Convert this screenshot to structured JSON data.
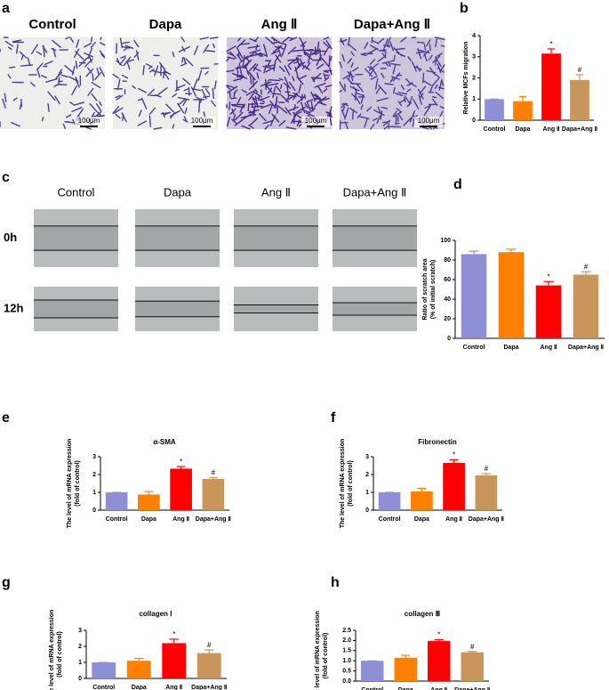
{
  "panels": {
    "a": {
      "letter": "a",
      "labels": [
        "Control",
        "Dapa",
        "Ang Ⅱ",
        "Dapa+Ang Ⅱ"
      ],
      "scale_bar": "100μm"
    },
    "c": {
      "letter": "c",
      "labels": [
        "Control",
        "Dapa",
        "Ang Ⅱ",
        "Dapa+Ang Ⅱ"
      ],
      "rows": [
        "0h",
        "12h"
      ]
    }
  },
  "chart_data": [
    {
      "type": "bar",
      "letter": "b",
      "ylabel": [
        "Relative MCFs migration"
      ],
      "categories": [
        "Control",
        "Dapa",
        "Ang Ⅱ",
        "Dapa+Ang Ⅱ"
      ],
      "values": [
        1,
        0.9,
        3.15,
        1.9
      ],
      "errors": [
        0,
        0.22,
        0.22,
        0.25
      ],
      "colors": [
        "#8f8fd6",
        "#ff8000",
        "#ff0000",
        "#c8965a"
      ],
      "ylim": [
        0,
        4
      ],
      "yticks": [
        0,
        1,
        2,
        3,
        4
      ],
      "annotations": [
        {
          "category": "Ang Ⅱ",
          "text": "*"
        },
        {
          "category": "Dapa+Ang Ⅱ",
          "text": "#"
        }
      ]
    },
    {
      "type": "bar",
      "letter": "d",
      "ylabel": [
        "Ratio of scratch area",
        "(% of initial scratch)"
      ],
      "categories": [
        "Control",
        "Dapa",
        "Ang Ⅱ",
        "Dapa+Ang Ⅱ"
      ],
      "values": [
        86,
        88,
        54,
        65
      ],
      "errors": [
        3,
        3,
        4,
        3
      ],
      "colors": [
        "#8f8fd6",
        "#ff8000",
        "#ff0000",
        "#c8965a"
      ],
      "ylim": [
        0,
        100
      ],
      "yticks": [
        0,
        20,
        40,
        60,
        80,
        100
      ],
      "annotations": [
        {
          "category": "Ang Ⅱ",
          "text": "*"
        },
        {
          "category": "Dapa+Ang Ⅱ",
          "text": "#"
        }
      ]
    },
    {
      "type": "bar",
      "letter": "e",
      "title": "α-SMA",
      "ylabel": [
        "The level of mRNA expression",
        "(fold of control)"
      ],
      "categories": [
        "Control",
        "Dapa",
        "Ang Ⅱ",
        "Dapa+Ang Ⅱ"
      ],
      "values": [
        1,
        0.88,
        2.33,
        1.75
      ],
      "errors": [
        0,
        0.17,
        0.12,
        0.07
      ],
      "colors": [
        "#8f8fd6",
        "#ff8000",
        "#ff0000",
        "#c8965a"
      ],
      "ylim": [
        0,
        3
      ],
      "yticks": [
        0,
        1,
        2,
        3
      ],
      "annotations": [
        {
          "category": "Ang Ⅱ",
          "text": "*"
        },
        {
          "category": "Dapa+Ang Ⅱ",
          "text": "#"
        }
      ]
    },
    {
      "type": "bar",
      "letter": "f",
      "title": "Fibronectin",
      "ylabel": [
        "The level of mRNA expression",
        "(fold of control)"
      ],
      "categories": [
        "Control",
        "Dapa",
        "Ang Ⅱ",
        "Dapa+Ang Ⅱ"
      ],
      "values": [
        1,
        1.05,
        2.65,
        1.95
      ],
      "errors": [
        0,
        0.18,
        0.18,
        0.1
      ],
      "colors": [
        "#8f8fd6",
        "#ff8000",
        "#ff0000",
        "#c8965a"
      ],
      "ylim": [
        0,
        3
      ],
      "yticks": [
        0,
        1,
        2,
        3
      ],
      "annotations": [
        {
          "category": "Ang Ⅱ",
          "text": "*"
        },
        {
          "category": "Dapa+Ang Ⅱ",
          "text": "#"
        }
      ]
    },
    {
      "type": "bar",
      "letter": "g",
      "title": "collagen Ⅰ",
      "ylabel": [
        "The level of mRNA expression",
        "(fold of control)"
      ],
      "categories": [
        "Control",
        "Dapa",
        "Ang Ⅱ",
        "Dapa+Ang Ⅱ"
      ],
      "values": [
        1,
        1.1,
        2.2,
        1.58
      ],
      "errors": [
        0,
        0.15,
        0.25,
        0.2
      ],
      "colors": [
        "#8f8fd6",
        "#ff8000",
        "#ff0000",
        "#c8965a"
      ],
      "ylim": [
        0,
        3
      ],
      "yticks": [
        0,
        1,
        2,
        3
      ],
      "annotations": [
        {
          "category": "Ang Ⅱ",
          "text": "*"
        },
        {
          "category": "Dapa+Ang Ⅱ",
          "text": "#"
        }
      ]
    },
    {
      "type": "bar",
      "letter": "h",
      "title": "collagen Ⅲ",
      "ylabel": [
        "The level of mRNA expression",
        "(fold of control)"
      ],
      "categories": [
        "Control",
        "Dapa",
        "Ang Ⅱ",
        "Dapa+Ang Ⅱ"
      ],
      "values": [
        1,
        1.15,
        1.97,
        1.42
      ],
      "errors": [
        0,
        0.12,
        0.07,
        0.04
      ],
      "colors": [
        "#8f8fd6",
        "#ff8000",
        "#ff0000",
        "#c8965a"
      ],
      "ylim": [
        0,
        2.5
      ],
      "yticks": [
        {
          "value": 0,
          "label": "0.0"
        },
        0.5,
        {
          "value": 1,
          "label": "1.0"
        },
        1.5,
        {
          "value": 2,
          "label": "2.0"
        },
        2.5
      ],
      "annotations": [
        {
          "category": "Ang Ⅱ",
          "text": "*"
        },
        {
          "category": "Dapa+Ang Ⅱ",
          "text": "#"
        }
      ]
    }
  ]
}
